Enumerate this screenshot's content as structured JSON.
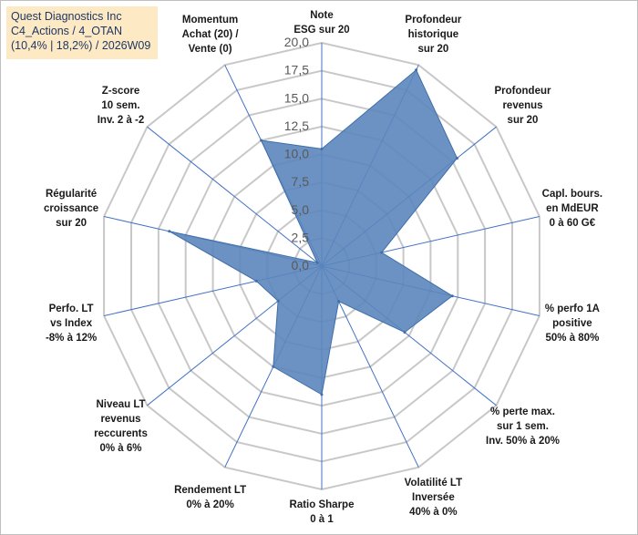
{
  "title": {
    "lines": [
      "Quest Diagnostics Inc",
      "C4_Actions / 4_OTAN",
      "(10,4% | 18,2%) / 2026W09"
    ]
  },
  "chart_data": {
    "type": "radar",
    "r_min": 0,
    "r_max": 20,
    "ticks": [
      "0,0",
      "2,5",
      "5,0",
      "7,5",
      "10,0",
      "12,5",
      "15,0",
      "17,5",
      "20,0"
    ],
    "tick_values": [
      0,
      2.5,
      5,
      7.5,
      10,
      12.5,
      15,
      17.5,
      20
    ],
    "axes": [
      {
        "lines": [
          "Note",
          "ESG sur 20"
        ],
        "value": 10.5
      },
      {
        "lines": [
          "Profondeur",
          "historique",
          "sur 20"
        ],
        "value": 19.5
      },
      {
        "lines": [
          "Profondeur",
          "revenus",
          "sur 20"
        ],
        "value": 15.5
      },
      {
        "lines": [
          "Capl. bours.",
          "en MdEUR",
          "0 à 60 G€"
        ],
        "value": 5.5
      },
      {
        "lines": [
          "% perfo 1A",
          "positive",
          "50% à 80%"
        ],
        "value": 12.0
      },
      {
        "lines": [
          "% perte max.",
          "sur 1 sem.",
          "Inv. 50% à 20%"
        ],
        "value": 9.5
      },
      {
        "lines": [
          "Volatilité LT",
          "Inversée",
          "40% à 0%"
        ],
        "value": 3.5
      },
      {
        "lines": [
          "Ratio Sharpe",
          "0 à 1"
        ],
        "value": 11.5
      },
      {
        "lines": [
          "Rendement LT",
          "0% à 20%"
        ],
        "value": 10.0
      },
      {
        "lines": [
          "Niveau LT",
          "revenus",
          "reccurents",
          "0% à 6%"
        ],
        "value": 5.0
      },
      {
        "lines": [
          "Perfo. LT",
          "vs Index",
          "-8% à 12%"
        ],
        "value": 6.0
      },
      {
        "lines": [
          "Régularité",
          "croissance",
          "sur 20"
        ],
        "value": 14.0
      },
      {
        "lines": [
          "Z-score",
          "10 sem.",
          "Inv. 2 à -2"
        ],
        "value": 0.5
      },
      {
        "lines": [
          "Momentum",
          "Achat (20) /",
          "Vente (0)"
        ],
        "value": 12.5
      }
    ],
    "colors": {
      "fill": "#5b86bd",
      "stroke": "#3f6ea8",
      "grid": "#c8c8c8",
      "spoke": "#4472c4"
    }
  }
}
